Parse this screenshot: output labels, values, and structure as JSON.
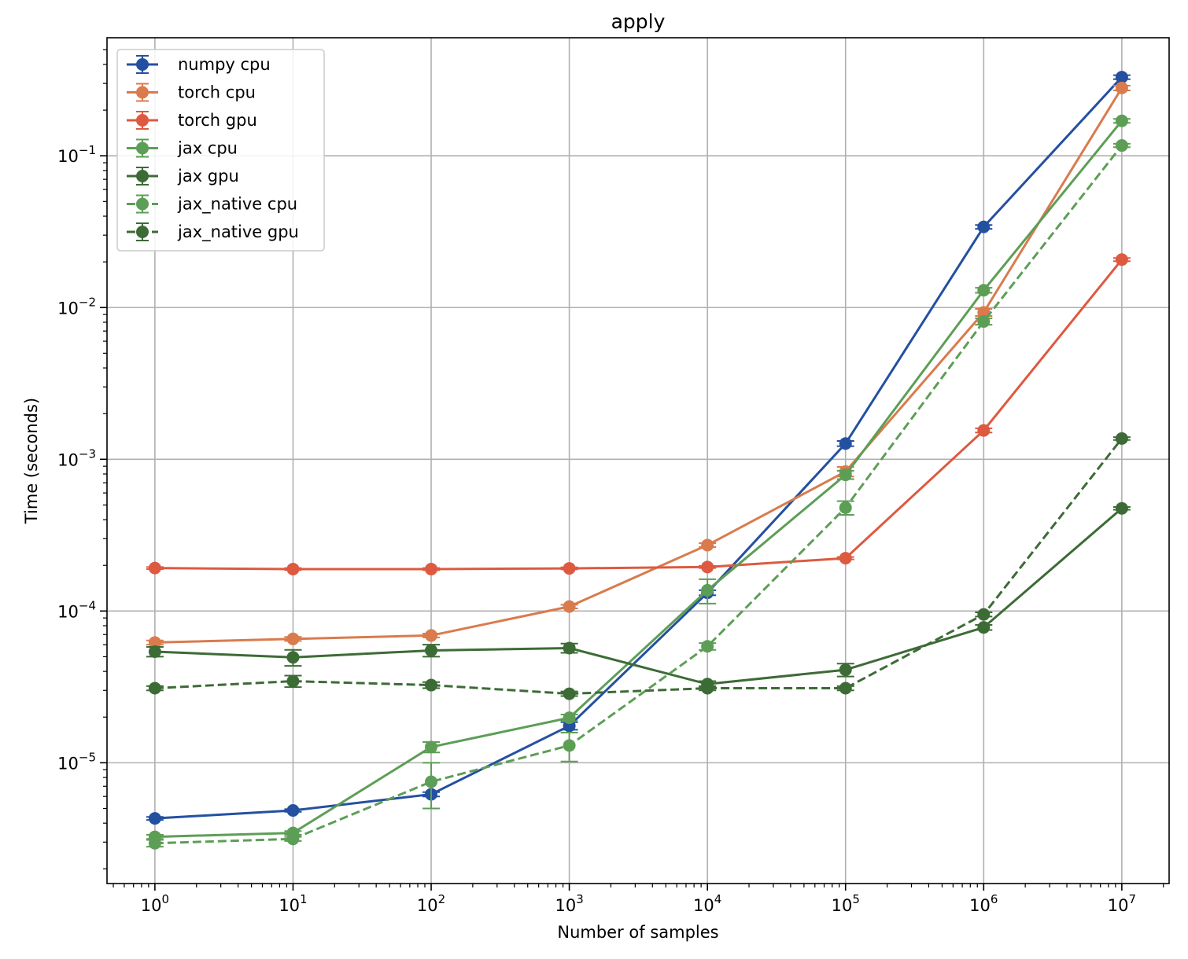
{
  "chart_data": {
    "type": "line",
    "title": "apply",
    "xlabel": "Number of samples",
    "ylabel": "Time (seconds)",
    "xscale": "log",
    "yscale": "log",
    "xlim": [
      0.45,
      22000000
    ],
    "ylim": [
      1.6e-06,
      0.6
    ],
    "grid": true,
    "legend_position": "top-left",
    "x": [
      1,
      10,
      100,
      1000,
      10000,
      100000,
      1000000,
      10000000
    ],
    "x_tick_labels": [
      {
        "base": "10",
        "exp": "0",
        "value": 1
      },
      {
        "base": "10",
        "exp": "1",
        "value": 10
      },
      {
        "base": "10",
        "exp": "2",
        "value": 100
      },
      {
        "base": "10",
        "exp": "3",
        "value": 1000
      },
      {
        "base": "10",
        "exp": "4",
        "value": 10000
      },
      {
        "base": "10",
        "exp": "5",
        "value": 100000
      },
      {
        "base": "10",
        "exp": "6",
        "value": 1000000
      },
      {
        "base": "10",
        "exp": "7",
        "value": 10000000
      }
    ],
    "y_tick_labels": [
      {
        "base": "10",
        "exp": "−5",
        "value": 1e-05
      },
      {
        "base": "10",
        "exp": "−4",
        "value": 0.0001
      },
      {
        "base": "10",
        "exp": "−3",
        "value": 0.001
      },
      {
        "base": "10",
        "exp": "−2",
        "value": 0.01
      },
      {
        "base": "10",
        "exp": "−1",
        "value": 0.1
      }
    ],
    "series": [
      {
        "name": "numpy cpu",
        "color": "#2450a0",
        "dash": false,
        "values": [
          4.3e-06,
          4.85e-06,
          6.2e-06,
          1.75e-05,
          0.000132,
          0.00127,
          0.034,
          0.33
        ],
        "errors": [
          1e-07,
          1e-07,
          2e-07,
          1e-06,
          5e-06,
          5e-05,
          0.001,
          0.01
        ]
      },
      {
        "name": "torch cpu",
        "color": "#d97b4d",
        "dash": false,
        "values": [
          6.2e-05,
          6.55e-05,
          6.9e-05,
          0.000107,
          0.000272,
          0.00083,
          0.0093,
          0.28
        ],
        "errors": [
          2e-06,
          2e-06,
          2e-06,
          3e-06,
          8e-06,
          6e-05,
          0.0005,
          0.01
        ]
      },
      {
        "name": "torch gpu",
        "color": "#dd5a40",
        "dash": false,
        "values": [
          0.000192,
          0.000189,
          0.000189,
          0.000191,
          0.000195,
          0.000223,
          0.00155,
          0.0207
        ],
        "errors": [
          3e-06,
          3e-06,
          3e-06,
          3e-06,
          3e-06,
          4e-06,
          5e-05,
          0.0005
        ]
      },
      {
        "name": "jax cpu",
        "color": "#5d9e56",
        "dash": false,
        "values": [
          3.25e-06,
          3.45e-06,
          1.27e-05,
          1.98e-05,
          0.000137,
          0.00079,
          0.013,
          0.17
        ],
        "errors": [
          1e-07,
          1e-07,
          1e-06,
          1e-06,
          2.5e-05,
          5e-05,
          0.0005,
          0.005
        ]
      },
      {
        "name": "jax gpu",
        "color": "#3d6b36",
        "dash": false,
        "values": [
          5.4e-05,
          4.95e-05,
          5.5e-05,
          5.7e-05,
          3.3e-05,
          4.1e-05,
          7.8e-05,
          0.000475
        ],
        "errors": [
          4e-06,
          6e-06,
          5e-06,
          4e-06,
          1.5e-06,
          4e-06,
          3e-06,
          1e-05
        ]
      },
      {
        "name": "jax_native cpu",
        "color": "#5d9e56",
        "dash": true,
        "values": [
          2.95e-06,
          3.15e-06,
          7.5e-06,
          1.3e-05,
          5.85e-05,
          0.00048,
          0.0081,
          0.117
        ],
        "errors": [
          1.5e-07,
          1e-07,
          2.5e-06,
          2.8e-06,
          3e-06,
          5e-05,
          0.0004,
          0.003
        ]
      },
      {
        "name": "jax_native gpu",
        "color": "#3d6b36",
        "dash": true,
        "values": [
          3.1e-05,
          3.45e-05,
          3.25e-05,
          2.85e-05,
          3.1e-05,
          3.1e-05,
          9.5e-05,
          0.00137
        ],
        "errors": [
          1e-06,
          3e-06,
          1.5e-06,
          1e-06,
          1e-06,
          1e-06,
          3e-06,
          3e-05
        ]
      }
    ]
  }
}
